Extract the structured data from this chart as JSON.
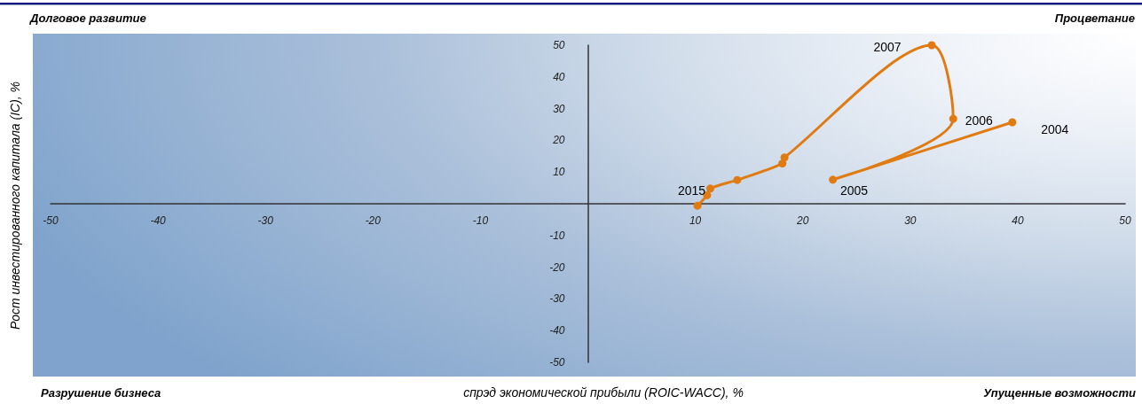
{
  "chart_data": {
    "type": "line",
    "xlabel": "спрэд экономической прибыли (ROIC-WACC), %",
    "ylabel": "Рост инвестированного капитала (IC), %",
    "x": [
      39.5,
      22.8,
      34.0,
      32.0,
      18.3,
      18.1,
      13.9,
      11.4,
      11.1,
      10.2
    ],
    "series": [
      {
        "color": "#e07b12",
        "values": [
          25.7,
          7.6,
          26.8,
          50.0,
          14.6,
          12.7,
          7.5,
          4.8,
          2.7,
          -0.6
        ]
      }
    ],
    "xlim": [
      -50,
      50
    ],
    "ylim": [
      -50,
      50
    ],
    "xticks": [
      -50,
      -40,
      -30,
      -20,
      -10,
      10,
      20,
      30,
      40,
      50
    ],
    "yticks": [
      -50,
      -40,
      -30,
      -20,
      -10,
      10,
      20,
      30,
      40,
      50
    ],
    "marker": "circle",
    "line_style": "solid",
    "annotations": [
      "Долговое развитие",
      "Процветание",
      "Разрушение бизнеса",
      "Упущенные возможности",
      {
        "text": "2004",
        "x": 39.5,
        "y": 25.7
      },
      {
        "text": "2005",
        "x": 22.8,
        "y": 7.6
      },
      {
        "text": "2006",
        "x": 34.0,
        "y": 26.8
      },
      {
        "text": "2007",
        "x": 32.0,
        "y": 50.0
      },
      {
        "text": "2015",
        "x": 11.4,
        "y": 4.8
      }
    ]
  }
}
